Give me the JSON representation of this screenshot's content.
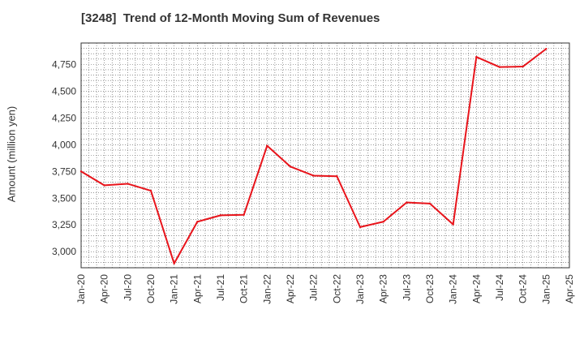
{
  "chart_data": {
    "type": "line",
    "title": "[3248]  Trend of 12-Month Moving Sum of Revenues",
    "xlabel": "",
    "ylabel": "Amount (million yen)",
    "categories": [
      "Jan-20",
      "Apr-20",
      "Jul-20",
      "Oct-20",
      "Jan-21",
      "Apr-21",
      "Jul-21",
      "Oct-21",
      "Jan-22",
      "Apr-22",
      "Jul-22",
      "Oct-22",
      "Jan-23",
      "Apr-23",
      "Jul-23",
      "Oct-23",
      "Jan-24",
      "Apr-24",
      "Jul-24",
      "Oct-24",
      "Jan-25",
      "Apr-25"
    ],
    "series": [
      {
        "color": "#e8141b",
        "values": [
          3750,
          3620,
          3635,
          3570,
          2890,
          3280,
          3340,
          3345,
          3990,
          3795,
          3710,
          3705,
          3230,
          3280,
          3460,
          3450,
          3255,
          4820,
          4725,
          4730,
          4895,
          null
        ]
      }
    ],
    "yticks": [
      3000,
      3250,
      3500,
      3750,
      4000,
      4250,
      4500,
      4750
    ],
    "ytick_labels": [
      "3,000",
      "3,250",
      "3,500",
      "3,750",
      "4,000",
      "4,250",
      "4,500",
      "4,750"
    ],
    "ylim": [
      2850,
      4950
    ],
    "grid": true,
    "grid_style": "dotted",
    "legend": "none"
  }
}
